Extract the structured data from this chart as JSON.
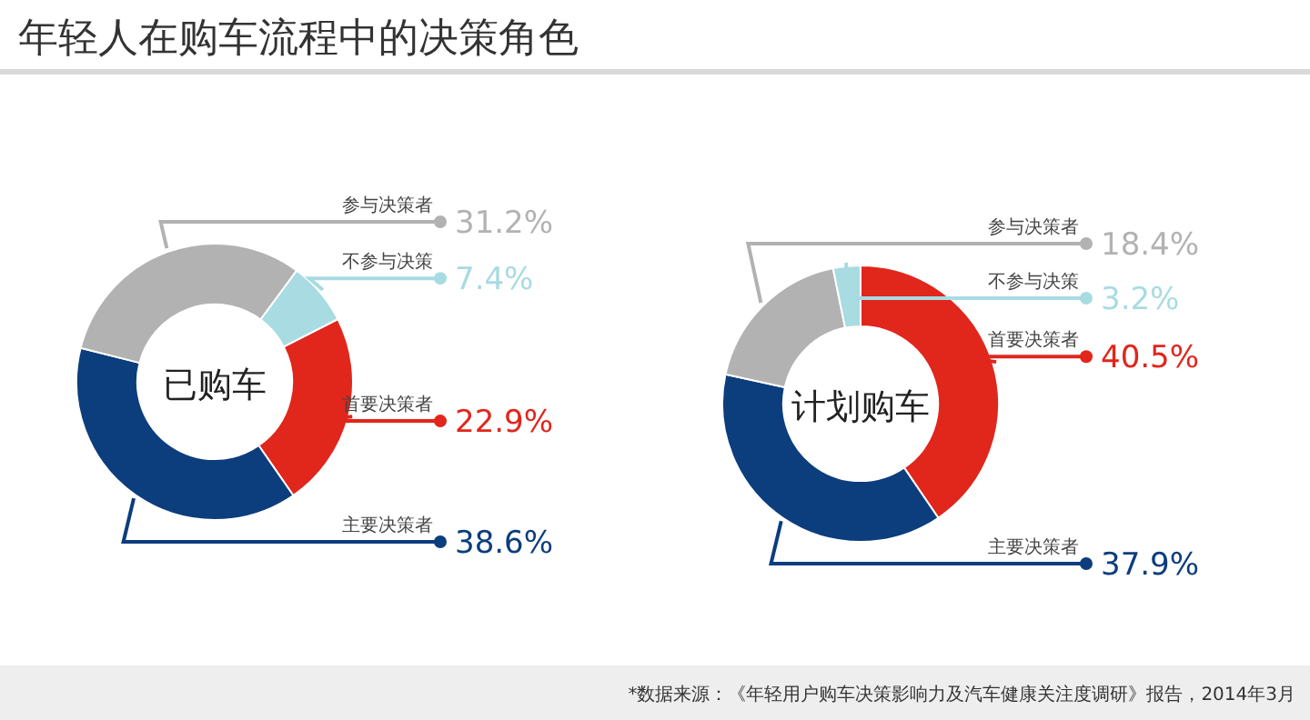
{
  "chart_data": [
    {
      "type": "donut",
      "title": "年轻人在购车流程中的决策角色",
      "subtitle": "已购车",
      "categories": [
        "首要决策者",
        "主要决策者",
        "参与决策者",
        "不参与决策"
      ],
      "values": [
        22.9,
        38.6,
        31.2,
        7.4
      ],
      "colors": [
        "#e1261c",
        "#0c3d7d",
        "#b2b2b2",
        "#a8dbe2"
      ],
      "value_labels": [
        "22.9%",
        "38.6%",
        "31.2%",
        "7.4%"
      ]
    },
    {
      "type": "donut",
      "subtitle": "计划购车",
      "categories": [
        "首要决策者",
        "主要决策者",
        "参与决策者",
        "不参与决策"
      ],
      "values": [
        40.5,
        37.9,
        18.4,
        3.2
      ],
      "colors": [
        "#e1261c",
        "#0c3d7d",
        "#b2b2b2",
        "#a8dbe2"
      ],
      "value_labels": [
        "40.5%",
        "37.9%",
        "18.4%",
        "3.2%"
      ],
      "annotations": [
        "*数据来源：《年轻用户购车决策影响力及汽车健康关注度调研》报告，2014年3月"
      ]
    }
  ]
}
